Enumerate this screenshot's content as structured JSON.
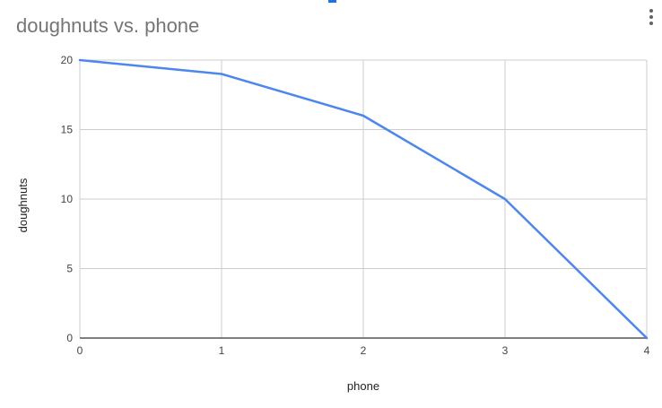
{
  "chart_data": {
    "type": "line",
    "title": "doughnuts vs. phone",
    "xlabel": "phone",
    "ylabel": "doughnuts",
    "x": [
      0,
      1,
      2,
      3,
      4
    ],
    "series": [
      {
        "values": [
          20,
          19,
          16,
          10,
          0
        ]
      }
    ],
    "xlim": [
      0,
      4
    ],
    "ylim": [
      0,
      20
    ],
    "xticks": [
      0,
      1,
      2,
      3,
      4
    ],
    "yticks": [
      0,
      5,
      10,
      15,
      20
    ],
    "grid": true,
    "legend": "none",
    "colors": {
      "line": "#4e87ec",
      "grid": "#cccccc",
      "axis": "#333333"
    }
  },
  "toolbar": {
    "menu_icon": "more-vert-icon"
  }
}
